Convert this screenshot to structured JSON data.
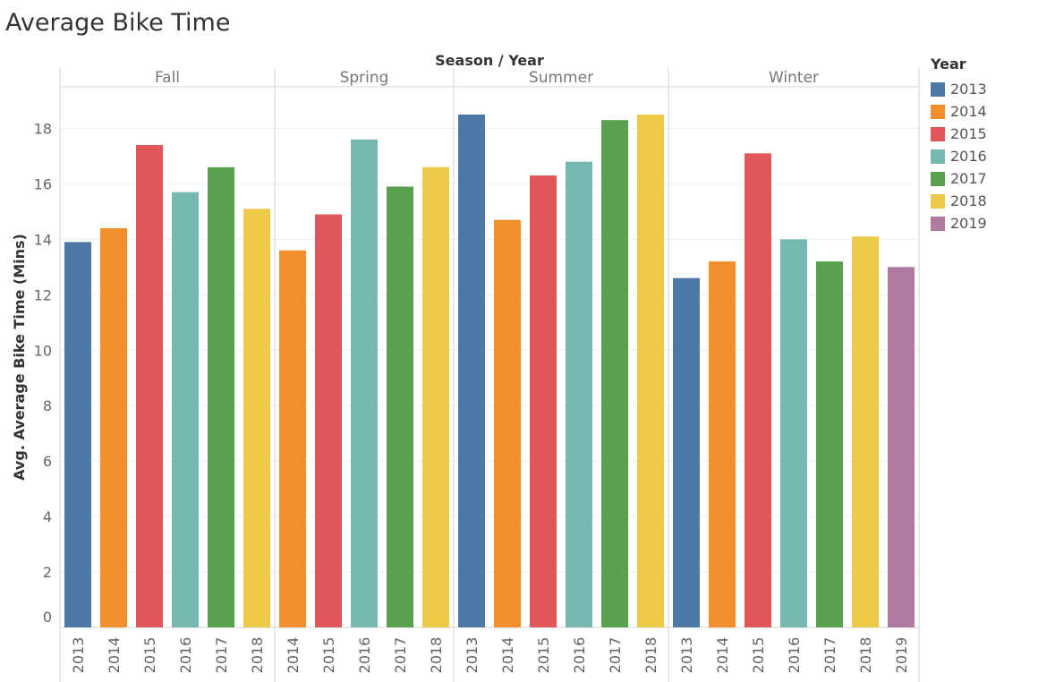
{
  "title": "Average Bike Time",
  "chart_data": {
    "type": "bar",
    "title": "Average Bike Time",
    "column_header": "Season / Year",
    "ylabel": "Avg. Average Bike Time (Mins)",
    "xlabel": "",
    "ylim": [
      0,
      19.5
    ],
    "yticks": [
      0,
      2,
      4,
      6,
      8,
      10,
      12,
      14,
      16,
      18
    ],
    "grid": true,
    "legend": {
      "title": "Year",
      "position": "right"
    },
    "groups": [
      {
        "name": "Fall",
        "bars": [
          {
            "year": "2013",
            "value": 13.9
          },
          {
            "year": "2014",
            "value": 14.4
          },
          {
            "year": "2015",
            "value": 17.4
          },
          {
            "year": "2016",
            "value": 15.7
          },
          {
            "year": "2017",
            "value": 16.6
          },
          {
            "year": "2018",
            "value": 15.1
          }
        ]
      },
      {
        "name": "Spring",
        "bars": [
          {
            "year": "2014",
            "value": 13.6
          },
          {
            "year": "2015",
            "value": 14.9
          },
          {
            "year": "2016",
            "value": 17.6
          },
          {
            "year": "2017",
            "value": 15.9
          },
          {
            "year": "2018",
            "value": 16.6
          }
        ]
      },
      {
        "name": "Summer",
        "bars": [
          {
            "year": "2013",
            "value": 18.5
          },
          {
            "year": "2014",
            "value": 14.7
          },
          {
            "year": "2015",
            "value": 16.3
          },
          {
            "year": "2016",
            "value": 16.8
          },
          {
            "year": "2017",
            "value": 18.3
          },
          {
            "year": "2018",
            "value": 18.5
          }
        ]
      },
      {
        "name": "Winter",
        "bars": [
          {
            "year": "2013",
            "value": 12.6
          },
          {
            "year": "2014",
            "value": 13.2
          },
          {
            "year": "2015",
            "value": 17.1
          },
          {
            "year": "2016",
            "value": 14.0
          },
          {
            "year": "2017",
            "value": 13.2
          },
          {
            "year": "2018",
            "value": 14.1
          },
          {
            "year": "2019",
            "value": 13.0
          }
        ]
      }
    ],
    "colors": {
      "2013": "#4e79a7",
      "2014": "#f28e2b",
      "2015": "#e15759",
      "2016": "#76b7b2",
      "2017": "#59a14f",
      "2018": "#edc948",
      "2019": "#b07aa1"
    },
    "legend_entries": [
      "2013",
      "2014",
      "2015",
      "2016",
      "2017",
      "2018",
      "2019"
    ]
  }
}
